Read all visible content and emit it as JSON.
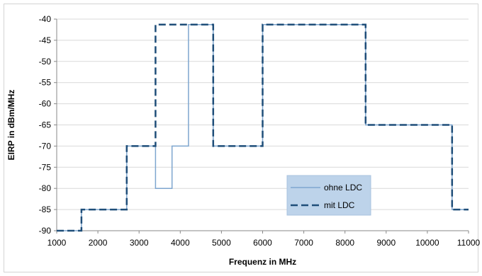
{
  "chart_data": {
    "type": "line",
    "title": "",
    "xlabel": "Frequenz in MHz",
    "ylabel": "EIRP in dBm/MHz",
    "xlim": [
      1000,
      11000
    ],
    "ylim": [
      -90,
      -40
    ],
    "xticks": [
      1000,
      2000,
      3000,
      4000,
      5000,
      6000,
      7000,
      8000,
      9000,
      10000,
      11000
    ],
    "yticks": [
      -40,
      -45,
      -50,
      -55,
      -60,
      -65,
      -70,
      -75,
      -80,
      -85,
      -90
    ],
    "grid": "horizontal",
    "legend_position": "bottom-right",
    "series": [
      {
        "name": "ohne LDC",
        "style": "solid",
        "color": "#7ea6cf",
        "x": [
          1000,
          1600,
          1600,
          2700,
          2700,
          3400,
          3400,
          3800,
          3800,
          4200,
          4200,
          4800,
          4800,
          6000,
          6000,
          8500,
          8500,
          10600,
          10600,
          11000
        ],
        "y": [
          -90,
          -90,
          -85,
          -85,
          -70,
          -70,
          -80,
          -80,
          -70,
          -70,
          -41.3,
          -41.3,
          -70,
          -70,
          -41.3,
          -41.3,
          -65,
          -65,
          -85,
          -85
        ]
      },
      {
        "name": "mit LDC",
        "style": "dashed",
        "color": "#1f4e79",
        "x": [
          1000,
          1600,
          1600,
          2700,
          2700,
          3400,
          3400,
          4800,
          4800,
          6000,
          6000,
          8500,
          8500,
          10600,
          10600,
          11000
        ],
        "y": [
          -90,
          -90,
          -85,
          -85,
          -70,
          -70,
          -41.3,
          -41.3,
          -70,
          -70,
          -41.3,
          -41.3,
          -65,
          -65,
          -85,
          -85
        ]
      }
    ]
  }
}
